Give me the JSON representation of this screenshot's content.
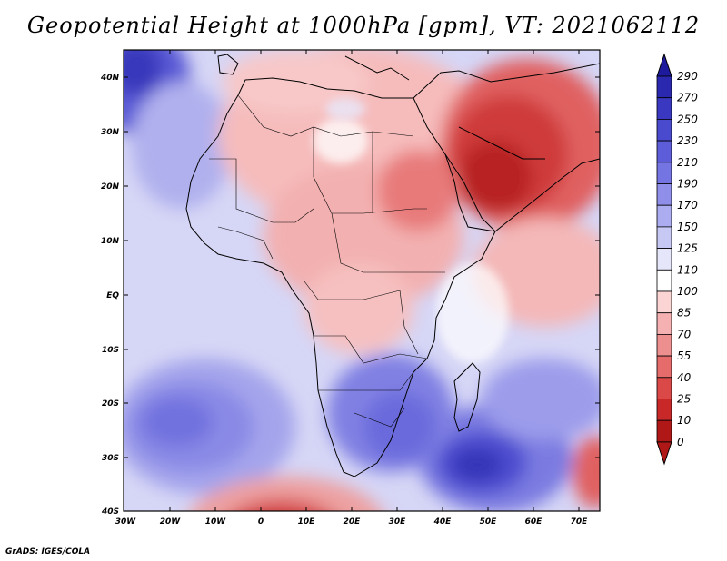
{
  "title": "Geopotential Height at 1000hPa [gpm], VT: 2021062112",
  "credit": "GrADS: IGES/COLA",
  "map": {
    "lat_labels": [
      "40N",
      "30N",
      "20N",
      "10N",
      "EQ",
      "10S",
      "20S",
      "30S",
      "40S"
    ],
    "lon_labels": [
      "30W",
      "20W",
      "10W",
      "0",
      "10E",
      "20E",
      "30E",
      "40E",
      "50E",
      "60E",
      "70E"
    ]
  },
  "colorbar": {
    "levels": [
      "290",
      "270",
      "250",
      "230",
      "210",
      "190",
      "170",
      "150",
      "125",
      "110",
      "100",
      "85",
      "70",
      "55",
      "40",
      "25",
      "10",
      "0"
    ],
    "colors": [
      "#1e1a9e",
      "#2b28b0",
      "#3a38c0",
      "#4a4ace",
      "#5d5dda",
      "#7474e2",
      "#8f8fe9",
      "#acacf0",
      "#c8c8f5",
      "#e6e6fb",
      "#ffffff",
      "#fbd4d4",
      "#f5b1b1",
      "#ee8f8f",
      "#e66c6c",
      "#db4848",
      "#c92828",
      "#b01818"
    ]
  }
}
